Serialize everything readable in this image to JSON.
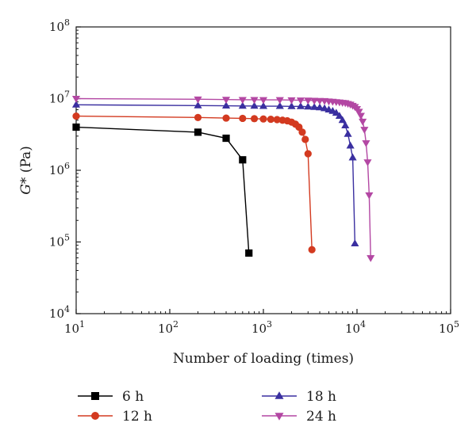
{
  "chart_data": {
    "type": "line",
    "xscale": "log",
    "yscale": "log",
    "xlabel": "Number of loading (times)",
    "ylabel_main": "G*",
    "ylabel_unit": " (Pa)",
    "xlim": [
      10,
      100000
    ],
    "ylim": [
      10000,
      100000000
    ],
    "grid": false,
    "legend_placement": "bottom",
    "x_ticks": [
      {
        "base": "10",
        "exp": "1"
      },
      {
        "base": "10",
        "exp": "2"
      },
      {
        "base": "10",
        "exp": "3"
      },
      {
        "base": "10",
        "exp": "4"
      },
      {
        "base": "10",
        "exp": "5"
      }
    ],
    "y_ticks": [
      {
        "base": "10",
        "exp": "4"
      },
      {
        "base": "10",
        "exp": "5"
      },
      {
        "base": "10",
        "exp": "6"
      },
      {
        "base": "10",
        "exp": "7"
      },
      {
        "base": "10",
        "exp": "8"
      }
    ],
    "series": [
      {
        "name": "6 h",
        "color": "#000000",
        "marker": "square",
        "x": [
          10,
          200,
          400,
          600,
          700
        ],
        "y": [
          4000000,
          3400000,
          2800000,
          1400000,
          70000
        ]
      },
      {
        "name": "12 h",
        "color": "#d33a20",
        "marker": "circle",
        "x": [
          10,
          200,
          400,
          600,
          800,
          1000,
          1200,
          1400,
          1600,
          1800,
          2000,
          2200,
          2400,
          2600,
          2800,
          3000,
          3300
        ],
        "y": [
          5700000,
          5450000,
          5350000,
          5300000,
          5250000,
          5200000,
          5150000,
          5100000,
          5000000,
          4900000,
          4700000,
          4400000,
          4000000,
          3400000,
          2700000,
          1700000,
          78000
        ]
      },
      {
        "name": "18 h",
        "color": "#3a2fa0",
        "marker": "triangle-up",
        "x": [
          10,
          200,
          400,
          600,
          800,
          1000,
          1500,
          2000,
          2500,
          3000,
          3500,
          4000,
          4500,
          5000,
          5500,
          6000,
          6500,
          7000,
          7500,
          8000,
          8500,
          9000,
          9500
        ],
        "y": [
          8200000,
          8000000,
          7950000,
          7900000,
          7900000,
          7850000,
          7850000,
          7800000,
          7800000,
          7700000,
          7600000,
          7500000,
          7300000,
          7000000,
          6700000,
          6300000,
          5700000,
          5000000,
          4200000,
          3200000,
          2200000,
          1500000,
          95000
        ]
      },
      {
        "name": "24 h",
        "color": "#b347a3",
        "marker": "triangle-down",
        "x": [
          10,
          200,
          400,
          600,
          800,
          1000,
          1500,
          2000,
          2500,
          3000,
          3500,
          4000,
          4500,
          5000,
          5500,
          6000,
          6500,
          7000,
          7500,
          8000,
          8500,
          9000,
          9500,
          10000,
          10500,
          11000,
          11500,
          12000,
          12500,
          13000,
          13500,
          14000
        ],
        "y": [
          10000000,
          9800000,
          9700000,
          9650000,
          9650000,
          9600000,
          9600000,
          9550000,
          9500000,
          9450000,
          9400000,
          9350000,
          9300000,
          9200000,
          9100000,
          9000000,
          8900000,
          8800000,
          8700000,
          8500000,
          8300000,
          8000000,
          7700000,
          7200000,
          6600000,
          5800000,
          4800000,
          3700000,
          2400000,
          1300000,
          450000,
          60000
        ]
      }
    ]
  }
}
